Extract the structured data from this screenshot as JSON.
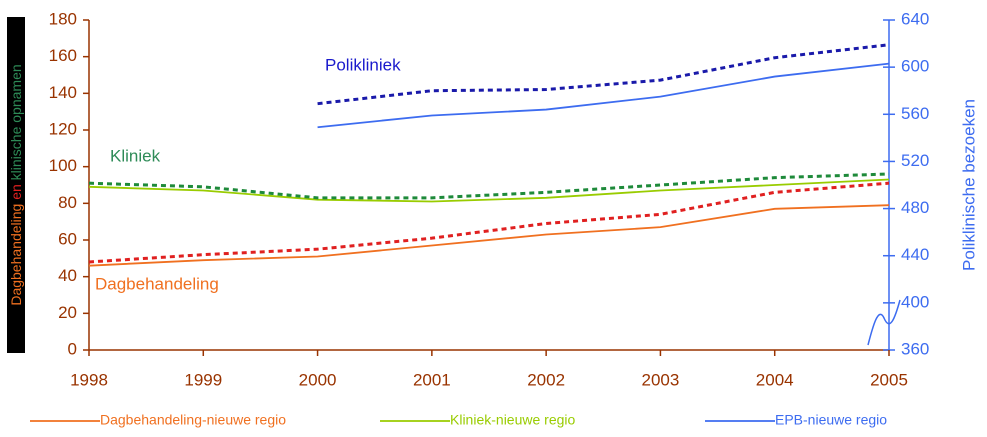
{
  "chart_data": {
    "type": "line",
    "ylabel_parts": [
      "Dagbehandeling",
      "en",
      "klinische opnamen"
    ],
    "y2label": "Poliklinische bezoeken",
    "annotations": [
      {
        "text": "Polikliniek",
        "color": "#1a1acc"
      },
      {
        "text": "Kliniek",
        "color": "#2e8b57"
      },
      {
        "text": "Dagbehandeling",
        "color": "#f07020"
      }
    ],
    "categories": [
      "1998",
      "1999",
      "2000",
      "2001",
      "2002",
      "2003",
      "2004",
      "2005"
    ],
    "series": [
      {
        "name": "Dagbehandeling-nieuwe regio",
        "color": "#f07020",
        "style": "solid",
        "values": [
          46,
          49,
          51,
          57,
          63,
          67,
          77,
          79
        ]
      },
      {
        "color": "#e02020",
        "style": "dotted",
        "values": [
          48,
          52,
          55,
          61,
          69,
          74,
          86,
          91
        ]
      },
      {
        "name": "Kliniek-nieuwe regio",
        "color": "#99cc00",
        "style": "solid",
        "values": [
          89,
          87,
          82,
          81,
          83,
          87,
          90,
          93
        ]
      },
      {
        "color": "#1e8a3a",
        "style": "dotted",
        "values": [
          91,
          89,
          83,
          83,
          86,
          90,
          94,
          96
        ]
      },
      {
        "name": "EPB-nieuwe regio",
        "color": "#3d6cf0",
        "style": "solid",
        "axis": "y2",
        "values": [
          null,
          null,
          549,
          559,
          564,
          575,
          592,
          603
        ]
      },
      {
        "color": "#1a1aaa",
        "style": "dotted",
        "axis": "y2",
        "values": [
          null,
          null,
          569,
          580,
          581,
          589,
          608,
          619
        ]
      }
    ],
    "ylim": [
      0,
      180
    ],
    "yticks": [
      0,
      20,
      40,
      60,
      80,
      100,
      120,
      140,
      160,
      180
    ],
    "y2lim": [
      360,
      640
    ],
    "y2ticks": [
      360,
      400,
      440,
      480,
      520,
      560,
      600,
      640
    ],
    "axis_color": "#993300",
    "axis2_color": "#3d6cf0"
  }
}
